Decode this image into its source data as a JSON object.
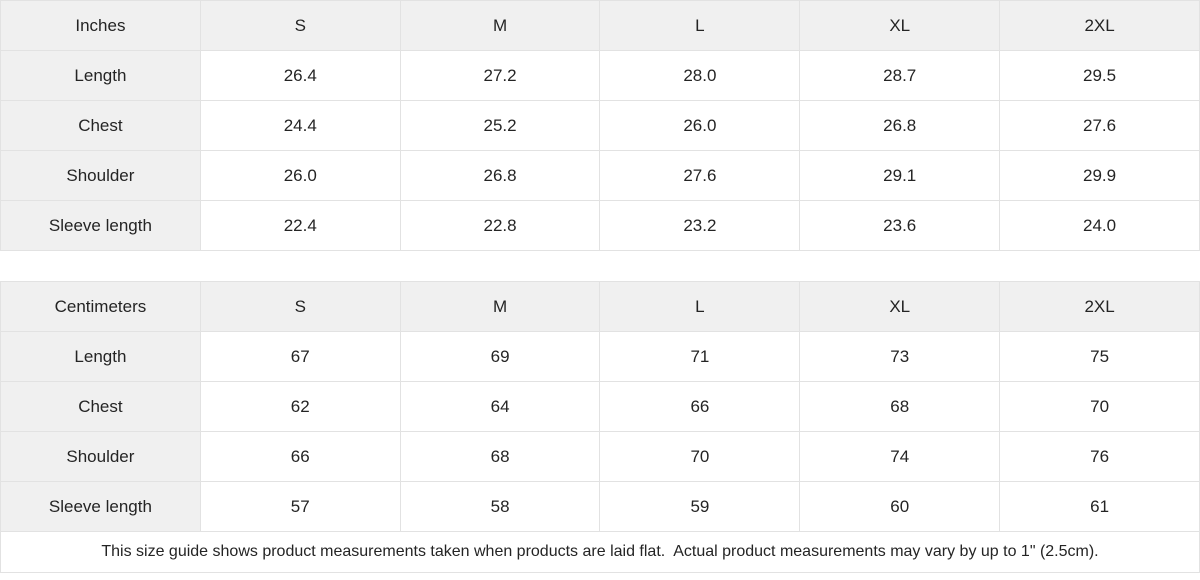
{
  "tables": [
    {
      "unit_label": "Inches",
      "columns": [
        "S",
        "M",
        "L",
        "XL",
        "2XL"
      ],
      "rows": [
        {
          "label": "Length",
          "values": [
            "26.4",
            "27.2",
            "28.0",
            "28.7",
            "29.5"
          ]
        },
        {
          "label": "Chest",
          "values": [
            "24.4",
            "25.2",
            "26.0",
            "26.8",
            "27.6"
          ]
        },
        {
          "label": "Shoulder",
          "values": [
            "26.0",
            "26.8",
            "27.6",
            "29.1",
            "29.9"
          ]
        },
        {
          "label": "Sleeve length",
          "values": [
            "22.4",
            "22.8",
            "23.2",
            "23.6",
            "24.0"
          ]
        }
      ]
    },
    {
      "unit_label": "Centimeters",
      "columns": [
        "S",
        "M",
        "L",
        "XL",
        "2XL"
      ],
      "rows": [
        {
          "label": "Length",
          "values": [
            "67",
            "69",
            "71",
            "73",
            "75"
          ]
        },
        {
          "label": "Chest",
          "values": [
            "62",
            "64",
            "66",
            "68",
            "70"
          ]
        },
        {
          "label": "Shoulder",
          "values": [
            "66",
            "68",
            "70",
            "74",
            "76"
          ]
        },
        {
          "label": "Sleeve length",
          "values": [
            "57",
            "58",
            "59",
            "60",
            "61"
          ]
        }
      ]
    }
  ],
  "footer": {
    "note": "This size guide shows product measurements taken when products are laid flat.  Actual product measurements may vary by up to 1\" (2.5cm)."
  },
  "colors": {
    "header_bg": "#f0f0f0",
    "cell_bg": "#ffffff",
    "border": "#e2e2e2",
    "text": "#242424"
  }
}
